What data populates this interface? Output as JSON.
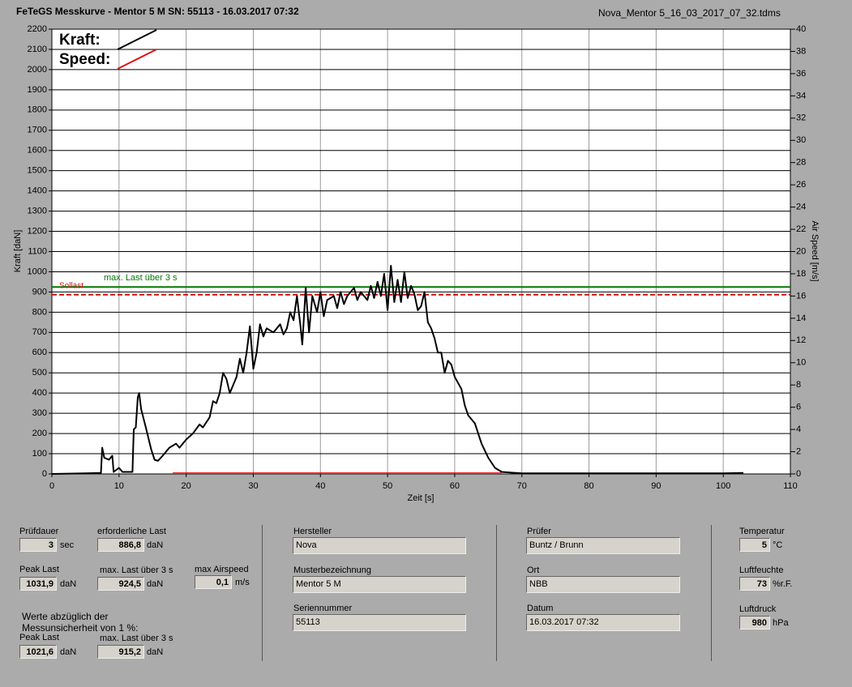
{
  "header": {
    "title": "FeTeGS Messkurve - Mentor 5 M  SN: 55113 - 16.03.2017 07:32",
    "file": "Nova_Mentor 5_16_03_2017_07_32.tdms"
  },
  "chart_data": {
    "type": "line",
    "y_label": "Kraft [daN]",
    "y2_label": "Air Speed [m/s]",
    "x_label": "Zeit [s]",
    "xlim": [
      0,
      110
    ],
    "xticks": [
      0,
      10,
      20,
      30,
      40,
      50,
      60,
      70,
      80,
      90,
      100,
      110
    ],
    "ylim": [
      0,
      2200
    ],
    "yticks": [
      0,
      100,
      200,
      300,
      400,
      500,
      600,
      700,
      800,
      900,
      1000,
      1100,
      1200,
      1300,
      1400,
      1500,
      1600,
      1700,
      1800,
      1900,
      2000,
      2100,
      2200
    ],
    "y2lim": [
      0,
      40
    ],
    "y2ticks": [
      0,
      2,
      4,
      6,
      8,
      10,
      12,
      14,
      16,
      18,
      20,
      22,
      24,
      26,
      28,
      30,
      32,
      34,
      36,
      38,
      40
    ],
    "grid": true,
    "reference_lines": [
      {
        "label": "max. Last über  3 s",
        "value": 924.5,
        "color": "#007a00",
        "style": "solid"
      },
      {
        "label": "Sollast",
        "value": 886.8,
        "color": "#d01010",
        "style": "dashed"
      }
    ],
    "series": [
      {
        "name": "Kraft:",
        "color": "#000000",
        "x": [
          0,
          5,
          7.3,
          7.5,
          7.8,
          8.5,
          9,
          9.2,
          10,
          10.5,
          12,
          12.2,
          12.5,
          12.8,
          13,
          13.3,
          14,
          14.8,
          15.3,
          15.8,
          16.5,
          17.5,
          18.5,
          19,
          20,
          21,
          22,
          22.5,
          23.5,
          24,
          24.5,
          25,
          25.5,
          26,
          26.5,
          27.5,
          28,
          28.5,
          29,
          29.5,
          30,
          30.5,
          31,
          31.5,
          32,
          33,
          34,
          34.5,
          35,
          35.5,
          36,
          36.5,
          37,
          37.3,
          37.8,
          38.3,
          38.8,
          39.5,
          40,
          40.5,
          41,
          42,
          42.5,
          43,
          43.5,
          44,
          45,
          45.5,
          46,
          47,
          47.5,
          48,
          48.5,
          49,
          49.5,
          50,
          50.5,
          51,
          51.5,
          52,
          52.5,
          53,
          53.5,
          54,
          54.5,
          55,
          55.5,
          56,
          56.5,
          57,
          57.5,
          58,
          58.5,
          59,
          59.5,
          60,
          61,
          61.5,
          62,
          63,
          64,
          65,
          66,
          67,
          70,
          100,
          103
        ],
        "values": [
          0,
          3,
          5,
          130,
          80,
          70,
          90,
          10,
          30,
          10,
          10,
          220,
          230,
          380,
          400,
          320,
          230,
          120,
          70,
          65,
          90,
          130,
          150,
          130,
          170,
          200,
          245,
          230,
          280,
          360,
          350,
          400,
          500,
          470,
          400,
          480,
          570,
          500,
          600,
          730,
          520,
          600,
          740,
          680,
          720,
          700,
          740,
          690,
          720,
          800,
          760,
          880,
          740,
          640,
          920,
          700,
          880,
          800,
          900,
          780,
          860,
          880,
          820,
          900,
          840,
          880,
          920,
          860,
          900,
          860,
          930,
          870,
          950,
          880,
          990,
          810,
          1030,
          850,
          960,
          850,
          1000,
          870,
          930,
          890,
          810,
          830,
          900,
          750,
          720,
          670,
          600,
          600,
          500,
          560,
          540,
          480,
          420,
          340,
          290,
          250,
          150,
          80,
          30,
          10,
          3,
          3,
          5
        ]
      },
      {
        "name": "Speed:",
        "color": "#e01010",
        "axis": "y2",
        "x": [
          18,
          40,
          67
        ],
        "values": [
          0.1,
          0.1,
          0.1
        ]
      }
    ]
  },
  "results": {
    "fields": [
      {
        "label": "Prüfdauer",
        "value": "3",
        "unit": "sec"
      },
      {
        "label": "erforderliche Last",
        "value": "886,8",
        "unit": "daN"
      },
      {
        "label": "Peak Last",
        "value": "1031,9",
        "unit": "daN"
      },
      {
        "label": "max. Last über  3 s",
        "value": "924,5",
        "unit": "daN"
      },
      {
        "label": "max Airspeed",
        "value": "0,1",
        "unit": "m/s"
      }
    ],
    "note": "Werte abzüglich der\nMessunsicherheit von 1  %:",
    "corrected": [
      {
        "label": "Peak Last",
        "value": "1021,6",
        "unit": "daN"
      },
      {
        "label": "max. Last über  3 s",
        "value": "915,2",
        "unit": "daN"
      }
    ]
  },
  "glider": [
    {
      "label": "Hersteller",
      "value": "Nova"
    },
    {
      "label": "Musterbezeichnung",
      "value": "Mentor 5 M"
    },
    {
      "label": "Seriennummer",
      "value": "55113"
    }
  ],
  "test": [
    {
      "label": "Prüfer",
      "value": "Buntz / Brunn"
    },
    {
      "label": "Ort",
      "value": "NBB"
    },
    {
      "label": "Datum",
      "value": "16.03.2017 07:32"
    }
  ],
  "ambient": [
    {
      "label": "Temperatur",
      "value": "5",
      "unit": "°C"
    },
    {
      "label": "Luftfeuchte",
      "value": "73",
      "unit": "%r.F."
    },
    {
      "label": "Luftdruck",
      "value": "980",
      "unit": "hPa"
    }
  ]
}
